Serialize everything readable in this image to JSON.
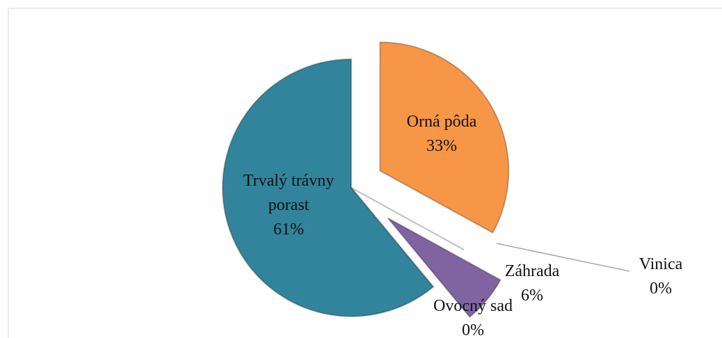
{
  "chart_data": {
    "type": "pie",
    "categories": [
      "Orná pôda",
      "Vinica",
      "Záhrada",
      "Ovocný sad",
      "Trvalý trávny porast"
    ],
    "values": [
      33,
      0,
      6,
      0,
      61
    ],
    "value_labels": [
      "33%",
      "0%",
      "6%",
      "0%",
      "61%"
    ],
    "colors": [
      "#f79646",
      "#9bbb59",
      "#8064a2",
      "#4bacc6",
      "#31849b"
    ],
    "start_angle": 0,
    "direction": "clockwise"
  }
}
